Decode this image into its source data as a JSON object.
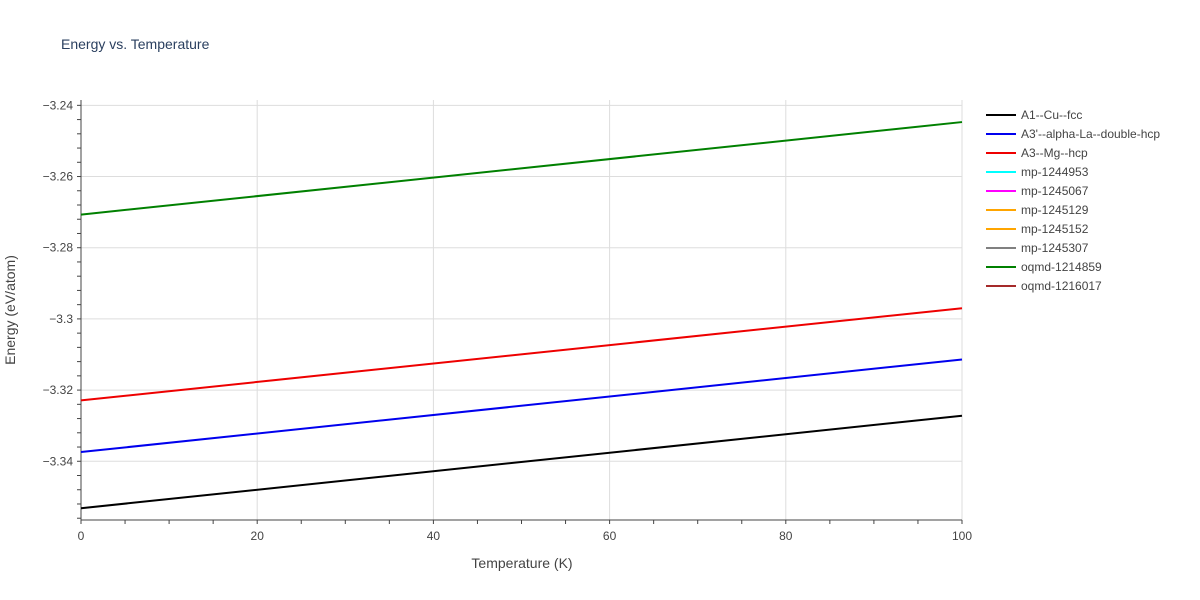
{
  "chart_data": {
    "type": "line",
    "title": "Energy vs. Temperature",
    "xlabel": "Temperature (K)",
    "ylabel": "Energy (eV/atom)",
    "xlim": [
      0,
      100
    ],
    "ylim": [
      -3.3565,
      -3.2385
    ],
    "xticks": [
      0,
      20,
      40,
      60,
      80,
      100
    ],
    "xtick_labels": [
      "0",
      "20",
      "40",
      "60",
      "80",
      "100"
    ],
    "yticks": [
      -3.34,
      -3.32,
      -3.3,
      -3.28,
      -3.26,
      -3.24
    ],
    "ytick_labels": [
      "−3.34",
      "−3.32",
      "−3.3",
      "−3.28",
      "−3.26",
      "−3.24"
    ],
    "grid": true,
    "legend_position": "right",
    "series": [
      {
        "name": "A1--Cu--fcc",
        "color": "#000000",
        "x": [
          0,
          100
        ],
        "y": [
          -3.3532,
          -3.3272
        ]
      },
      {
        "name": "A3'--alpha-La--double-hcp",
        "color": "#0000ee",
        "x": [
          0,
          100
        ],
        "y": [
          -3.3374,
          -3.3114
        ]
      },
      {
        "name": "A3--Mg--hcp",
        "color": "#ee0000",
        "x": [
          0,
          100
        ],
        "y": [
          -3.3229,
          -3.297
        ]
      },
      {
        "name": "mp-1244953",
        "color": "#00ffff",
        "x": [],
        "y": []
      },
      {
        "name": "mp-1245067",
        "color": "#ff00ff",
        "x": [],
        "y": []
      },
      {
        "name": "mp-1245129",
        "color": "#ffa500",
        "x": [],
        "y": []
      },
      {
        "name": "mp-1245152",
        "color": "#ffa500",
        "x": [],
        "y": []
      },
      {
        "name": "mp-1245307",
        "color": "#808080",
        "x": [],
        "y": []
      },
      {
        "name": "oqmd-1214859",
        "color": "#008000",
        "x": [
          0,
          100
        ],
        "y": [
          -3.2707,
          -3.2447
        ]
      },
      {
        "name": "oqmd-1216017",
        "color": "#a52a2a",
        "x": [],
        "y": []
      }
    ]
  }
}
